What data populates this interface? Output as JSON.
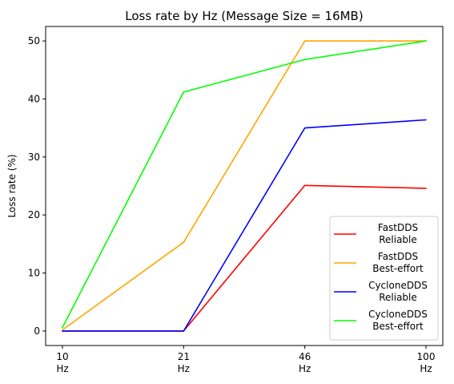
{
  "chart_data": {
    "type": "line",
    "title": "Loss rate by Hz (Message Size = 16MB)",
    "xlabel": "",
    "ylabel": "Loss rate (%)",
    "categories": [
      "10\nHz",
      "21\nHz",
      "46\nHz",
      "100\nHz"
    ],
    "ylim": [
      -2.5,
      52.5
    ],
    "yticks": [
      0,
      10,
      20,
      30,
      40,
      50
    ],
    "grid": false,
    "legend_position": "lower right",
    "series": [
      {
        "name": "FastDDS\n Reliable",
        "color": "#ff0000",
        "values": [
          0,
          0,
          25.1,
          24.6
        ]
      },
      {
        "name": "FastDDS\n Best-effort",
        "color": "#ffa500",
        "values": [
          0.2,
          15.3,
          50.0,
          50.0
        ]
      },
      {
        "name": "CycloneDDS\n Reliable",
        "color": "#0000ff",
        "values": [
          0,
          0,
          35.0,
          36.4
        ]
      },
      {
        "name": "CycloneDDS\n Best-effort",
        "color": "#00ff00",
        "values": [
          0.6,
          41.2,
          46.8,
          50.0
        ]
      }
    ]
  }
}
